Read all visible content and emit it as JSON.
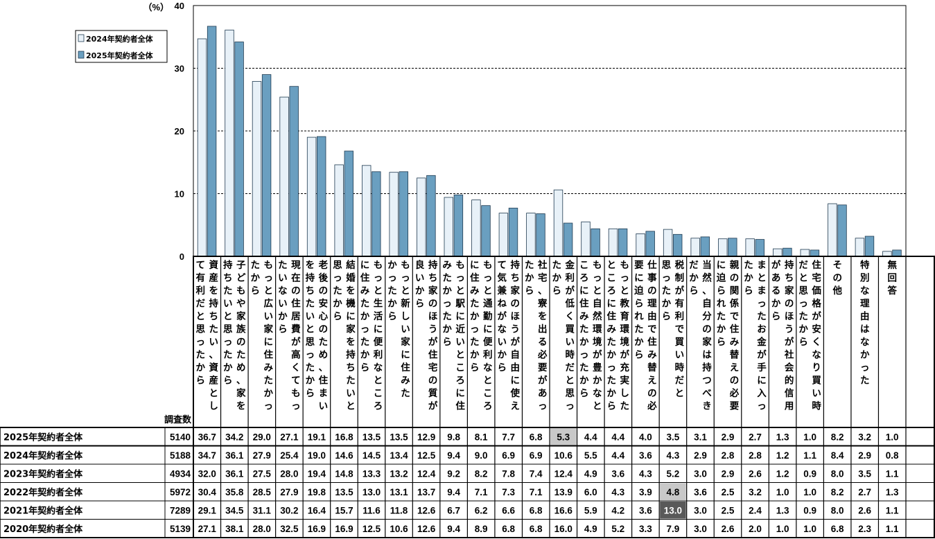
{
  "chart_data": {
    "type": "bar",
    "unit_label": "（%）",
    "ylim": [
      0,
      40
    ],
    "yticks": [
      "0",
      "10",
      "20",
      "30",
      "40"
    ],
    "grid": "dashed at 10, 20, 30",
    "legend_placement": "top-left",
    "categories": [
      [
        "資産を持ちたい、資産とし",
        "て有利だと思ったから"
      ],
      [
        "子どもや家族のため、家を",
        "持ちたいと思ったから"
      ],
      [
        "もっと広い家に住みたかっ",
        "たから"
      ],
      [
        "現在の住居費が高くてもっ",
        "たいないから"
      ],
      [
        "老後の安心のため、住まい",
        "を持ちたいと思ったから"
      ],
      [
        "結婚を機に家を持ちたいと",
        "思ったから"
      ],
      [
        "もっと生活に便利なところ",
        "に住みたかったから"
      ],
      [
        "もっと新しい家に住みた",
        "かったから"
      ],
      [
        "持ち家のほうが住宅の質が",
        "良いから"
      ],
      [
        "もっと駅に近いところに住",
        "みたかったから"
      ],
      [
        "もっと通勤に便利なところ",
        "に住みたかったから"
      ],
      [
        "持ち家のほうが自由に使え",
        "て気兼ねがないから"
      ],
      [
        "社宅、寮を出る必要があっ",
        "たから"
      ],
      [
        "金利が低く買い時だと思っ",
        "たから"
      ],
      [
        "もっと自然環境が豊かなと",
        "ころに住みたかったから"
      ],
      [
        "もっと教育環境が充実した",
        "ところに住みたかったから"
      ],
      [
        "仕事の理由で住み替えの必",
        "要に迫られたから"
      ],
      [
        "税制が有利で買い時だと",
        "思ったから"
      ],
      [
        "当然、自分の家は持つべき",
        "だから"
      ],
      [
        "親の関係で住み替えの必要",
        "に迫られたから"
      ],
      [
        "まとまったお金が手に入っ",
        "たから"
      ],
      [
        "持ち家のほうが社会的信用",
        "があるから"
      ],
      [
        "住宅価格が安くなり買い時",
        "だと思ったから"
      ],
      [
        "その他"
      ],
      [
        "特別な理由はなかった"
      ],
      [
        "無回答"
      ]
    ],
    "series": [
      {
        "name": "2024年契約者全体",
        "color": "#e8f1f8",
        "values": [
          34.7,
          36.1,
          27.9,
          25.4,
          19.0,
          14.6,
          14.5,
          13.4,
          12.5,
          9.4,
          9.0,
          6.9,
          6.9,
          10.6,
          5.5,
          4.4,
          3.6,
          4.3,
          2.9,
          2.8,
          2.8,
          1.2,
          1.1,
          8.4,
          2.9,
          0.8
        ]
      },
      {
        "name": "2025年契約者全体",
        "color": "#6a9fc0",
        "values": [
          36.7,
          34.2,
          29.0,
          27.1,
          19.1,
          16.8,
          13.5,
          13.5,
          12.9,
          9.8,
          8.1,
          7.7,
          6.8,
          5.3,
          4.4,
          4.4,
          4.0,
          3.5,
          3.1,
          2.9,
          2.7,
          1.3,
          1.0,
          8.2,
          3.2,
          1.0
        ]
      }
    ]
  },
  "table": {
    "n_header": "調査数",
    "rows": [
      {
        "label": "2025年契約者全体",
        "n": "5140",
        "values": [
          "36.7",
          "34.2",
          "29.0",
          "27.1",
          "19.1",
          "16.8",
          "13.5",
          "13.5",
          "12.9",
          "9.8",
          "8.1",
          "7.7",
          "6.8",
          "5.3",
          "4.4",
          "4.4",
          "4.0",
          "3.5",
          "3.1",
          "2.9",
          "2.7",
          "1.3",
          "1.0",
          "8.2",
          "3.2",
          "1.0"
        ]
      },
      {
        "label": "2024年契約者全体",
        "n": "5188",
        "values": [
          "34.7",
          "36.1",
          "27.9",
          "25.4",
          "19.0",
          "14.6",
          "14.5",
          "13.4",
          "12.5",
          "9.4",
          "9.0",
          "6.9",
          "6.9",
          "10.6",
          "5.5",
          "4.4",
          "3.6",
          "4.3",
          "2.9",
          "2.8",
          "2.8",
          "1.2",
          "1.1",
          "8.4",
          "2.9",
          "0.8"
        ]
      },
      {
        "label": "2023年契約者全体",
        "n": "4934",
        "values": [
          "32.0",
          "36.1",
          "27.5",
          "28.0",
          "19.4",
          "14.8",
          "13.3",
          "13.2",
          "12.4",
          "9.2",
          "8.2",
          "7.8",
          "7.4",
          "12.4",
          "4.9",
          "3.6",
          "4.3",
          "5.2",
          "3.0",
          "2.9",
          "2.6",
          "1.2",
          "0.9",
          "8.0",
          "3.5",
          "1.1"
        ]
      },
      {
        "label": "2022年契約者全体",
        "n": "5972",
        "values": [
          "30.4",
          "35.8",
          "28.5",
          "27.9",
          "19.8",
          "13.5",
          "13.0",
          "13.1",
          "13.7",
          "9.4",
          "7.1",
          "7.3",
          "7.1",
          "13.9",
          "6.0",
          "4.3",
          "3.9",
          "4.8",
          "3.6",
          "2.5",
          "3.2",
          "1.0",
          "1.0",
          "8.2",
          "2.7",
          "1.3"
        ]
      },
      {
        "label": "2021年契約者全体",
        "n": "7289",
        "values": [
          "29.1",
          "34.5",
          "31.1",
          "30.2",
          "16.4",
          "15.7",
          "11.6",
          "11.8",
          "12.6",
          "6.7",
          "6.2",
          "6.6",
          "6.8",
          "16.6",
          "5.9",
          "4.2",
          "3.6",
          "13.0",
          "3.0",
          "2.5",
          "2.4",
          "1.3",
          "0.9",
          "8.0",
          "2.6",
          "1.1"
        ]
      },
      {
        "label": "2020年契約者全体",
        "n": "5139",
        "values": [
          "27.1",
          "38.1",
          "28.0",
          "32.5",
          "16.9",
          "16.9",
          "12.5",
          "10.6",
          "12.6",
          "9.4",
          "8.9",
          "6.8",
          "6.8",
          "16.0",
          "4.9",
          "5.2",
          "3.3",
          "7.9",
          "3.0",
          "2.6",
          "2.0",
          "1.0",
          "1.0",
          "6.8",
          "2.3",
          "1.1"
        ]
      }
    ],
    "highlights": [
      {
        "row": 0,
        "col": 13,
        "color": "#c8c8c8",
        "text_color": "#000000"
      },
      {
        "row": 3,
        "col": 17,
        "color": "#c8c8c8",
        "text_color": "#000000"
      },
      {
        "row": 4,
        "col": 17,
        "color": "#595959",
        "text_color": "#ffffff"
      }
    ]
  }
}
